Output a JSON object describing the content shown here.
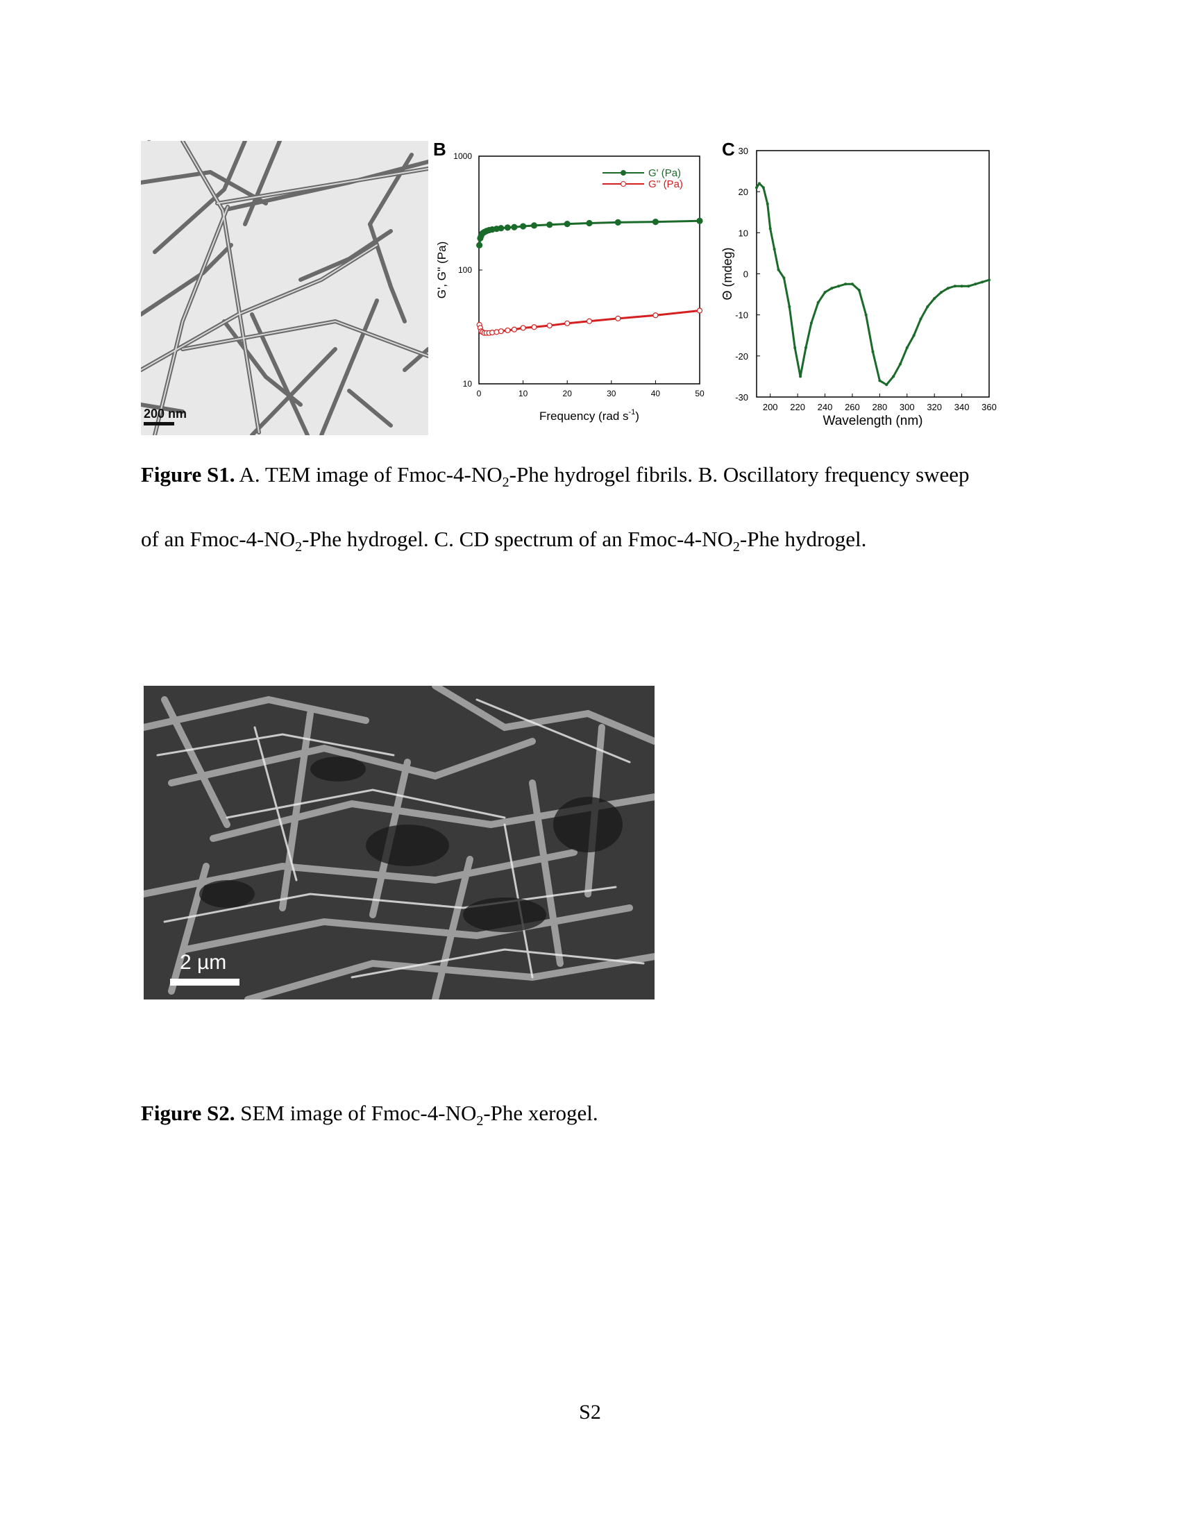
{
  "figure_s1": {
    "panel_a": {
      "letter": "A",
      "scale_label": "200 nm"
    },
    "panel_b": {
      "letter": "B"
    },
    "panel_c": {
      "letter": "C"
    },
    "caption": {
      "label": "Figure S1.",
      "line1_pre": " A. TEM image of Fmoc-4-NO",
      "line1_sub": "2",
      "line1_post": "-Phe hydrogel fibrils. B. Oscillatory frequency sweep",
      "line2_pre": "of an Fmoc-4-NO",
      "line2_sub1": "2",
      "line2_mid": "-Phe hydrogel. C. CD spectrum of an Fmoc-4-NO",
      "line2_sub2": "2",
      "line2_post": "-Phe hydrogel."
    }
  },
  "figure_s2": {
    "scale_label": "2 µm",
    "caption": {
      "label": "Figure S2.",
      "pre": " SEM image of Fmoc-4-NO",
      "sub": "2",
      "post": "-Phe xerogel."
    }
  },
  "page_number": "S2",
  "colors": {
    "green": "#1a6b2a",
    "red": "#d42020"
  },
  "chart_data": [
    {
      "type": "scatter",
      "title": "",
      "xlabel": "Frequency (rad s",
      "xlabel_sup": "-1",
      "xlabel_close": ")",
      "ylabel": "G', G'' (Pa)",
      "xlim": [
        0,
        50
      ],
      "ylim": [
        10,
        1000
      ],
      "yscale": "log",
      "xticks": [
        "0",
        "10",
        "20",
        "30",
        "40",
        "50"
      ],
      "yticks": [
        "10",
        "100",
        "1000"
      ],
      "legend_position": "top-right",
      "series": [
        {
          "name": "G' (Pa)",
          "color": "#1a6b2a",
          "filled": true,
          "x": [
            0.1,
            0.3,
            0.5,
            0.8,
            1.2,
            1.7,
            2.3,
            3,
            4,
            5,
            6.5,
            8,
            10,
            12.5,
            16,
            20,
            25,
            31.5,
            40,
            50
          ],
          "y": [
            165,
            190,
            200,
            210,
            215,
            220,
            224,
            227,
            230,
            233,
            236,
            238,
            242,
            246,
            250,
            254,
            258,
            262,
            265,
            270
          ]
        },
        {
          "name": "G'' (Pa)",
          "color": "#d42020",
          "filled": false,
          "x": [
            0.1,
            0.3,
            0.5,
            0.8,
            1.2,
            1.7,
            2.3,
            3,
            4,
            5,
            6.5,
            8,
            10,
            12.5,
            16,
            20,
            25,
            31.5,
            40,
            50
          ],
          "y": [
            33,
            31,
            29,
            28.5,
            28,
            28,
            28,
            28.2,
            28.5,
            29,
            29.5,
            30,
            31,
            31.5,
            32.5,
            34,
            35.5,
            37.5,
            40,
            44
          ]
        }
      ]
    },
    {
      "type": "line",
      "title": "",
      "xlabel": "Wavelength (nm)",
      "ylabel": "Θ (mdeg)",
      "xlim": [
        190,
        360
      ],
      "ylim": [
        -30,
        30
      ],
      "xticks": [
        "200",
        "220",
        "240",
        "260",
        "280",
        "300",
        "320",
        "340",
        "360"
      ],
      "yticks": [
        "30",
        "20",
        "10",
        "0",
        "-10",
        "-20",
        "-30"
      ],
      "series": [
        {
          "color": "#1a6b2a",
          "x": [
            190,
            192,
            195,
            198,
            200,
            203,
            206,
            210,
            214,
            218,
            222,
            226,
            230,
            235,
            240,
            245,
            250,
            255,
            260,
            265,
            270,
            275,
            280,
            285,
            290,
            295,
            300,
            305,
            310,
            315,
            320,
            325,
            330,
            335,
            340,
            345,
            350,
            355,
            360
          ],
          "y": [
            21,
            22,
            21,
            17,
            11,
            6,
            1,
            -1,
            -8,
            -18,
            -25,
            -18,
            -12,
            -7,
            -4.5,
            -3.5,
            -3,
            -2.5,
            -2.5,
            -4,
            -10,
            -19,
            -26,
            -27,
            -25,
            -22,
            -18,
            -15,
            -11,
            -8,
            -6,
            -4.5,
            -3.5,
            -3,
            -3,
            -3,
            -2.5,
            -2,
            -1.5
          ]
        }
      ]
    }
  ]
}
